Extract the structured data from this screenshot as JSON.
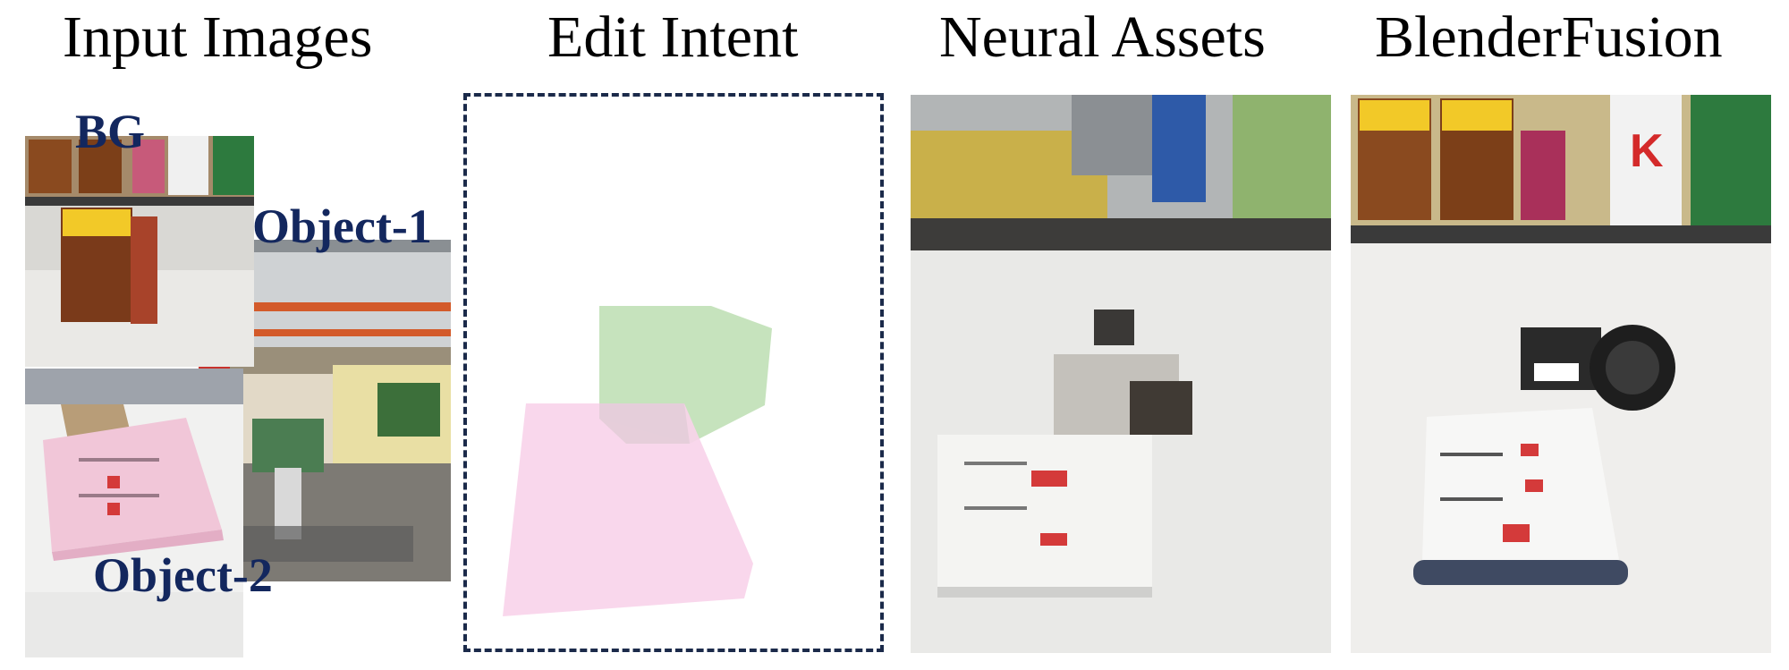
{
  "columns": {
    "input_images": "Input Images",
    "edit_intent": "Edit Intent",
    "neural_assets": "Neural Assets",
    "blender_fusion": "BlenderFusion"
  },
  "input_labels": {
    "bg": "BG",
    "object_1": "Object-1",
    "object_2": "Object-2"
  },
  "colors": {
    "label_blue": "#13275e",
    "dashed_border": "#1b2a4a",
    "green_box": "#c6e3bd",
    "pink_box": "#f8d3ea"
  }
}
